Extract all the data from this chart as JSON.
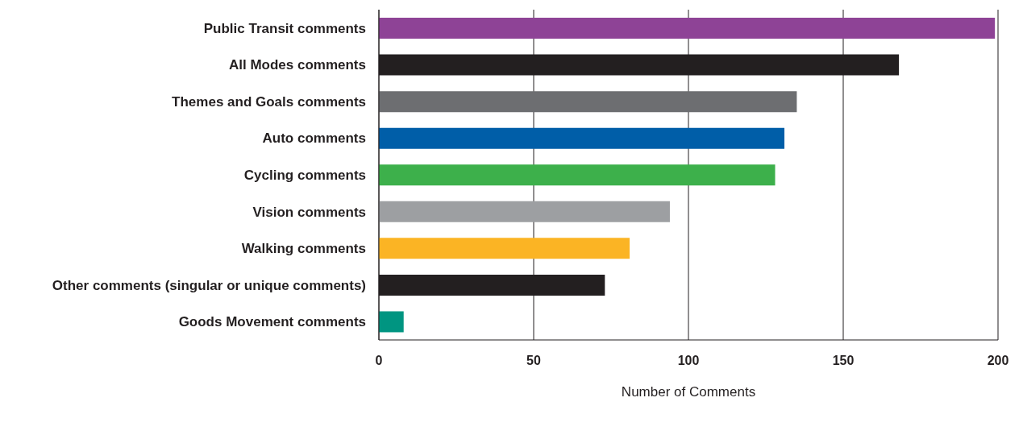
{
  "chart_data": {
    "type": "bar",
    "orientation": "horizontal",
    "xlabel": "Number of Comments",
    "categories": [
      "Public Transit comments",
      "All Modes comments",
      "Themes and Goals comments",
      "Auto comments",
      "Cycling comments",
      "Vision comments",
      "Walking comments",
      "Other comments (singular or unique comments)",
      "Goods Movement comments"
    ],
    "values": [
      199,
      168,
      135,
      131,
      128,
      94,
      81,
      73,
      8
    ],
    "colors": [
      "#8e4396",
      "#231f20",
      "#6d6e71",
      "#005ea8",
      "#3db04b",
      "#9d9fa2",
      "#fbb424",
      "#231f20",
      "#009581"
    ],
    "xlim": [
      0,
      200
    ],
    "xticks": [
      0,
      50,
      100,
      150,
      200
    ],
    "grid": "x"
  }
}
